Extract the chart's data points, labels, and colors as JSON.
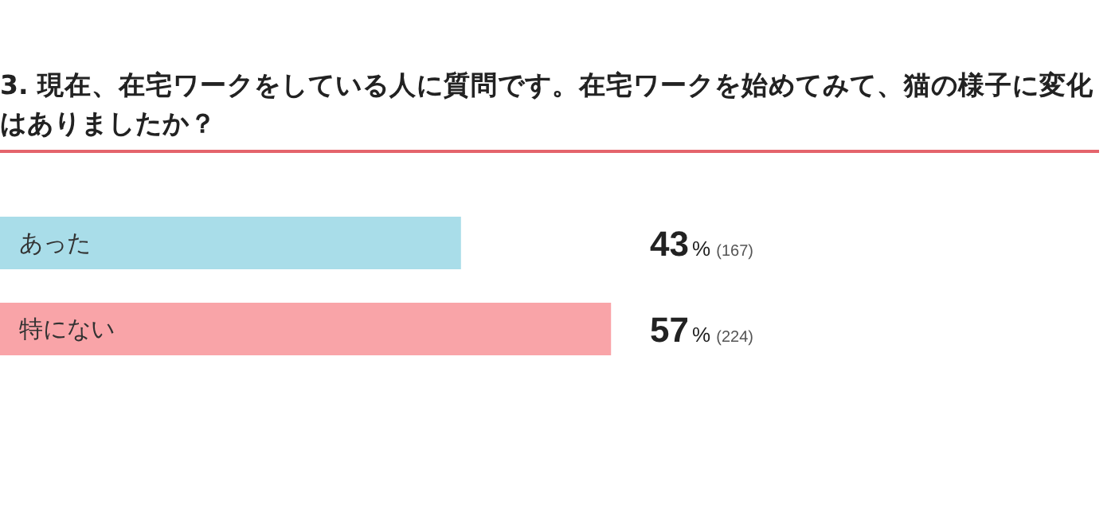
{
  "chart_data": {
    "type": "bar",
    "orientation": "horizontal",
    "title": "3. 現在、在宅ワークをしている人に質問です。在宅ワークを始めてみて、猫の様子に変化はありましたか？",
    "categories": [
      "あった",
      "特にない"
    ],
    "values": [
      43,
      57
    ],
    "colors": [
      "#a9dde9",
      "#f9a4a8"
    ],
    "value_labels": [
      "43% (167)",
      "57% (224)"
    ]
  }
}
